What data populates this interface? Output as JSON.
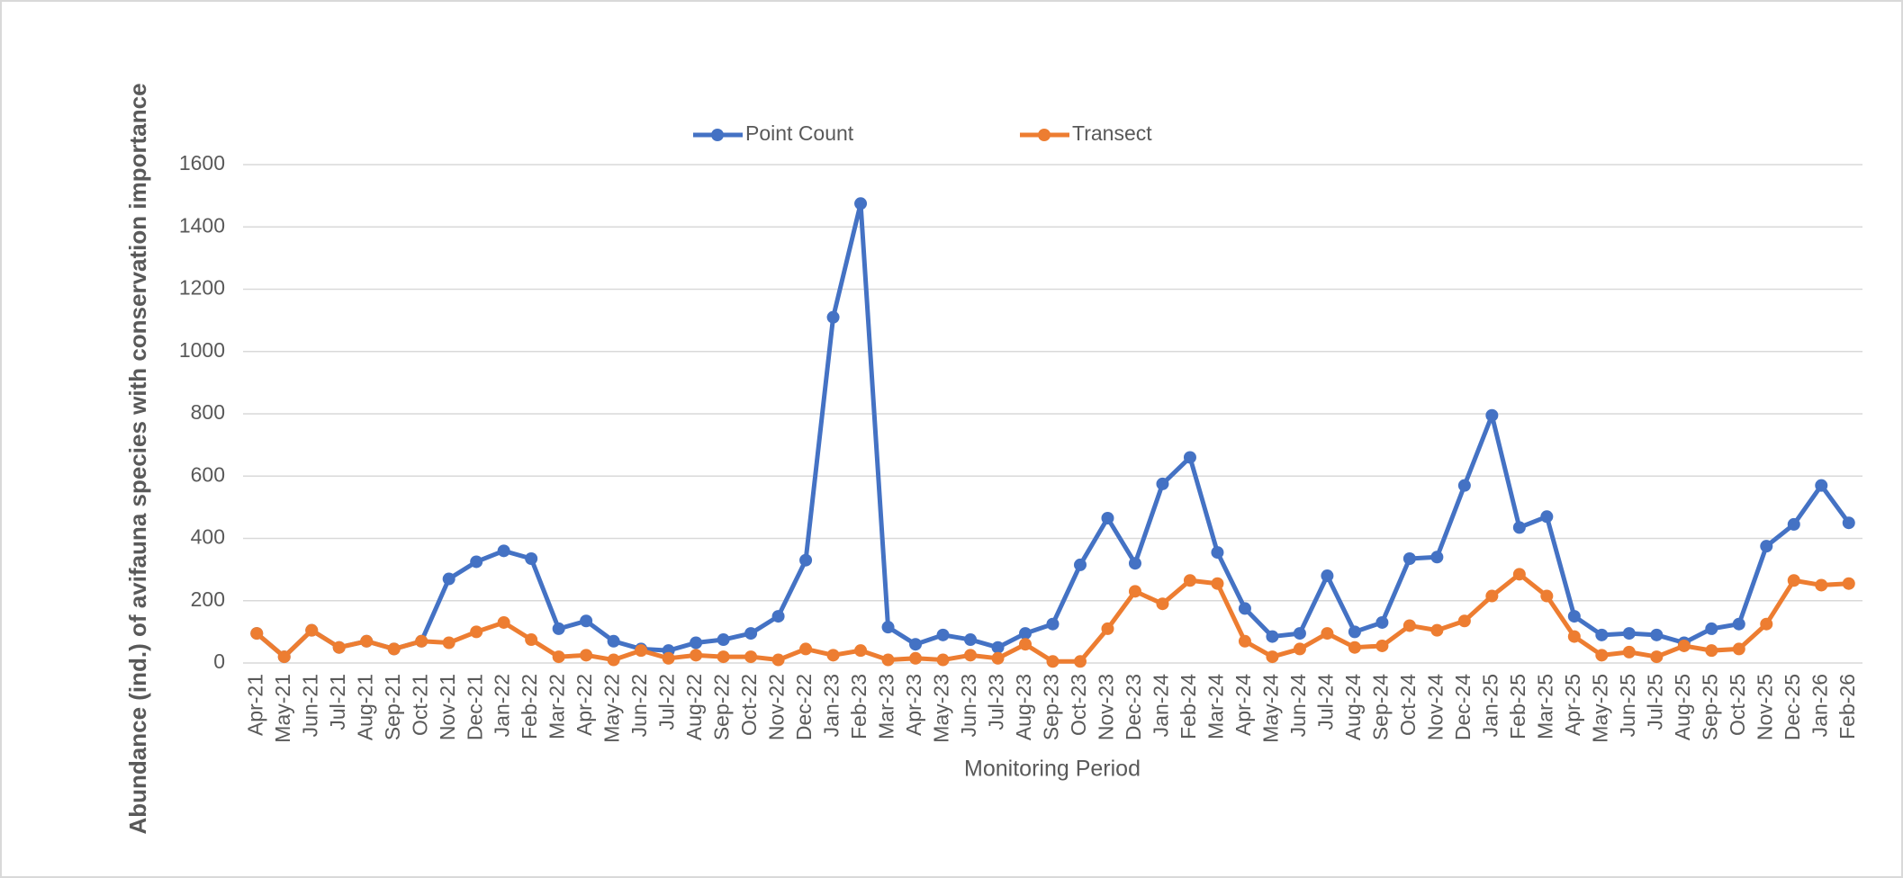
{
  "chart_data": {
    "type": "line",
    "xlabel": "Monitoring Period",
    "ylabel": "Abundance (ind.) of avifauna species with conservation importance",
    "categories": [
      "Apr-21",
      "May-21",
      "Jun-21",
      "Jul-21",
      "Aug-21",
      "Sep-21",
      "Oct-21",
      "Nov-21",
      "Dec-21",
      "Jan-22",
      "Feb-22",
      "Mar-22",
      "Apr-22",
      "May-22",
      "Jun-22",
      "Jul-22",
      "Aug-22",
      "Sep-22",
      "Oct-22",
      "Nov-22",
      "Dec-22",
      "Jan-23",
      "Feb-23",
      "Mar-23",
      "Apr-23",
      "May-23",
      "Jun-23",
      "Jul-23",
      "Aug-23",
      "Sep-23",
      "Oct-23",
      "Nov-23",
      "Dec-23",
      "Jan-24",
      "Feb-24",
      "Mar-24",
      "Apr-24",
      "May-24",
      "Jun-24",
      "Jul-24",
      "Aug-24",
      "Sep-24",
      "Oct-24",
      "Nov-24",
      "Dec-24",
      "Jan-25",
      "Feb-25",
      "Mar-25",
      "Apr-25",
      "May-25",
      "Jun-25",
      "Jul-25",
      "Aug-25",
      "Sep-25",
      "Oct-25",
      "Nov-25",
      "Dec-25",
      "Jan-26",
      "Feb-26"
    ],
    "series": [
      {
        "name": "Point Count",
        "color": "#4472c4",
        "values": [
          95,
          20,
          105,
          50,
          70,
          45,
          70,
          270,
          325,
          360,
          335,
          110,
          135,
          70,
          45,
          40,
          65,
          75,
          95,
          150,
          330,
          1110,
          1475,
          115,
          60,
          90,
          75,
          50,
          95,
          125,
          315,
          465,
          320,
          575,
          660,
          355,
          175,
          85,
          95,
          280,
          100,
          130,
          335,
          340,
          570,
          795,
          435,
          470,
          150,
          90,
          95,
          90,
          65,
          110,
          125,
          375,
          445,
          570,
          450
        ]
      },
      {
        "name": "Transect",
        "color": "#ed7d31",
        "values": [
          95,
          20,
          105,
          50,
          70,
          45,
          70,
          65,
          100,
          130,
          75,
          20,
          25,
          10,
          40,
          15,
          25,
          20,
          20,
          10,
          45,
          25,
          40,
          10,
          15,
          10,
          25,
          15,
          60,
          5,
          5,
          110,
          230,
          190,
          265,
          255,
          70,
          20,
          45,
          95,
          50,
          55,
          120,
          105,
          135,
          215,
          285,
          215,
          85,
          25,
          35,
          20,
          55,
          40,
          45,
          125,
          265,
          250,
          255
        ]
      }
    ],
    "ylim": [
      0,
      1600
    ],
    "yticks": [
      0,
      200,
      400,
      600,
      800,
      1000,
      1200,
      1400,
      1600
    ],
    "grid": true,
    "legend": "top"
  }
}
